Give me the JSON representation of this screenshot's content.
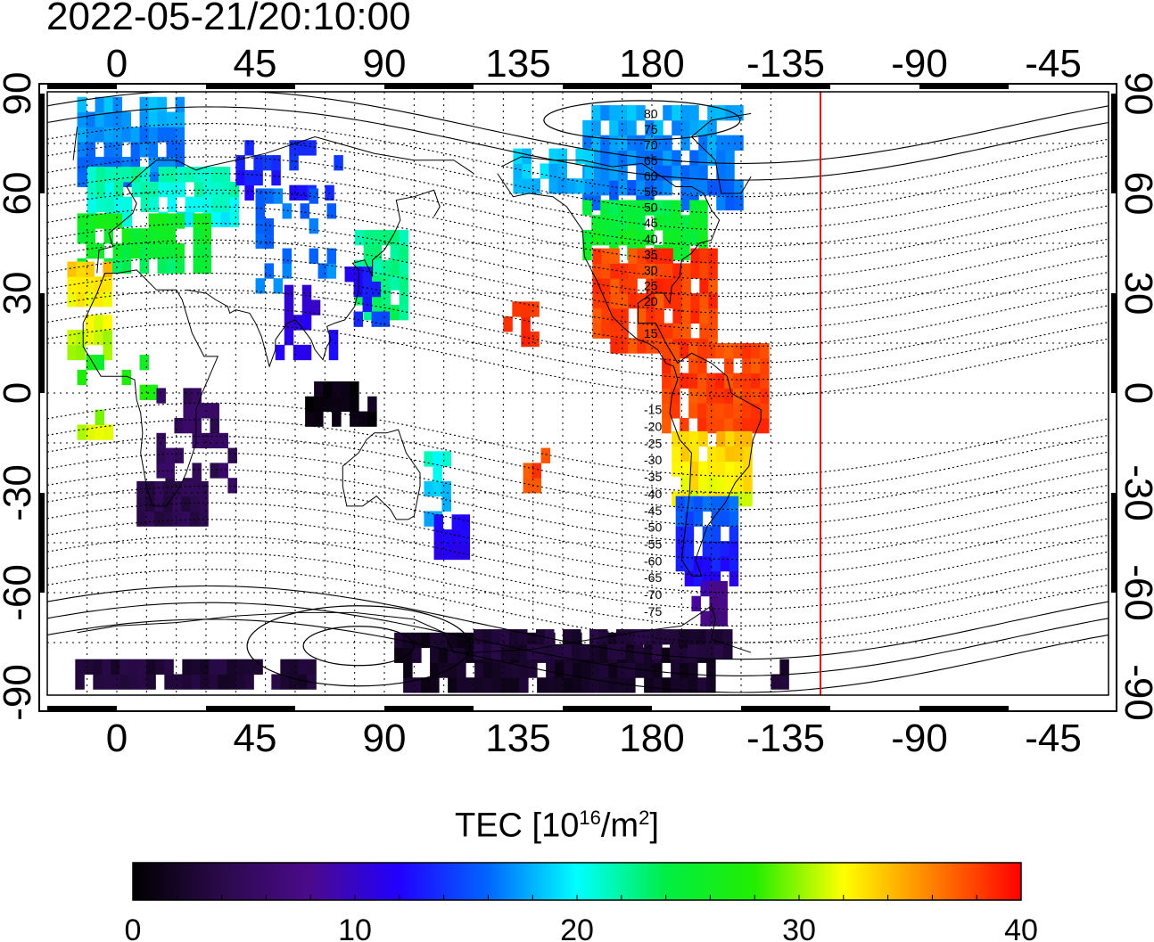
{
  "timestamp": "2022-05-21/20:10:00",
  "map": {
    "lon_ticks_top": [
      "0",
      "45",
      "90",
      "135",
      "180",
      "-135",
      "-90",
      "-45"
    ],
    "lon_ticks_bottom": [
      "0",
      "45",
      "90",
      "135",
      "180",
      "-135",
      "-90",
      "-45"
    ],
    "lat_ticks_left": [
      "90",
      "60",
      "30",
      "0",
      "-30",
      "-60",
      "-90"
    ],
    "lat_ticks_right": [
      "90",
      "60",
      "30",
      "0",
      "-30",
      "-60",
      "-90"
    ],
    "contour_labels_north": [
      "80",
      "75",
      "70",
      "65",
      "60",
      "55",
      "50",
      "45",
      "40",
      "35",
      "30",
      "25",
      "20",
      "15"
    ],
    "contour_labels_south": [
      "-15",
      "-20",
      "-25",
      "-30",
      "-35",
      "-40",
      "-45",
      "-50",
      "-55",
      "-60",
      "-65",
      "-70",
      "-75"
    ],
    "terminator_color": "#e00000"
  },
  "colorbar": {
    "title_prefix": "TEC  [10",
    "title_exp": "16",
    "title_unit": "/m",
    "title_unit_exp": "2",
    "title_suffix": "]",
    "tick_labels": [
      "0",
      "10",
      "20",
      "30",
      "40"
    ],
    "range": [
      0,
      40
    ],
    "colors": [
      "#000000",
      "#2a0a4a",
      "#4b0a8c",
      "#2200ff",
      "#0066ff",
      "#00ffff",
      "#00ee44",
      "#22ee00",
      "#ffff00",
      "#ff8000",
      "#ff0000"
    ]
  }
}
